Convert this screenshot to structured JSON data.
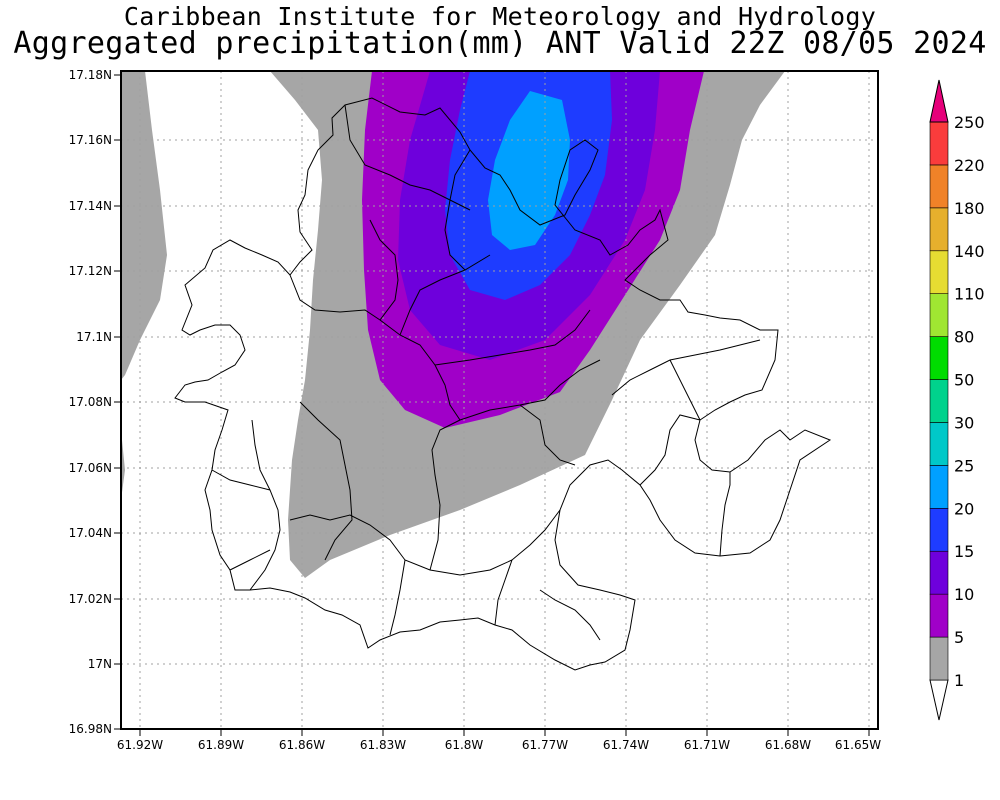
{
  "title": {
    "line1": "Caribbean Institute for Meteorology and Hydrology",
    "line2": "Aggregated precipitation(mm) ANT Valid 22Z 08/05 2024"
  },
  "axes": {
    "lat_labels": [
      "17.18N",
      "17.16N",
      "17.14N",
      "17.12N",
      "17.1N",
      "17.08N",
      "17.06N",
      "17.04N",
      "17.02N",
      "17N",
      "16.98N"
    ],
    "lon_labels": [
      "61.92W",
      "61.89W",
      "61.86W",
      "61.83W",
      "61.8W",
      "61.77W",
      "61.74W",
      "61.71W",
      "61.68W",
      "61.65W"
    ],
    "lat_range": [
      16.98,
      17.18
    ],
    "lon_range": [
      -61.927,
      -61.647
    ],
    "grid": true
  },
  "colorbar": {
    "levels": [
      {
        "label": "1",
        "color": "#a6a6a6"
      },
      {
        "label": "5",
        "color": "#a000c8"
      },
      {
        "label": "10",
        "color": "#6e00dc"
      },
      {
        "label": "15",
        "color": "#1e3cff"
      },
      {
        "label": "20",
        "color": "#00a0ff"
      },
      {
        "label": "25",
        "color": "#00c8c8"
      },
      {
        "label": "30",
        "color": "#00d28c"
      },
      {
        "label": "50",
        "color": "#00dc00"
      },
      {
        "label": "80",
        "color": "#a0e632"
      },
      {
        "label": "110",
        "color": "#e6dc32"
      },
      {
        "label": "140",
        "color": "#e6af2d"
      },
      {
        "label": "180",
        "color": "#f08228"
      },
      {
        "label": "220",
        "color": "#fa3c3c"
      },
      {
        "label": "250",
        "color": "#e6007a"
      }
    ],
    "below_min_color": "#ffffff",
    "top_arrow_color": "#e6007a"
  },
  "colors": {
    "land_outline": "#000000",
    "grid": "#a0a0a0"
  }
}
